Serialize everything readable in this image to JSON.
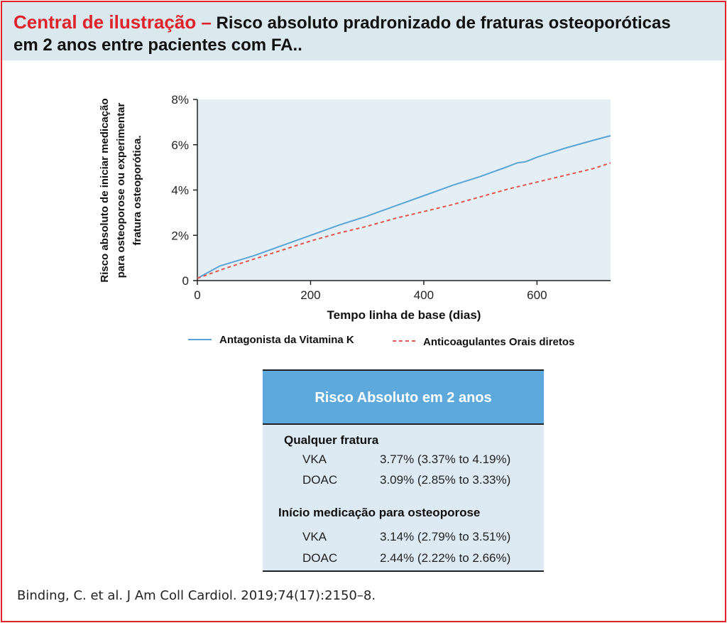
{
  "header": {
    "accent_title": "Central de ilustração –",
    "title_rest": " Risco absoluto pradronizado de fraturas osteoporóticas",
    "title_line2": "em 2 anos entre pacientes com FA.."
  },
  "colors": {
    "frame": "#e0232b",
    "header_bg": "#dbe8ee",
    "plot_bg": "#e4eef5",
    "vka": "#5aa5d6",
    "doac": "#e0574a",
    "table_head": "#5ea9dc",
    "table_bg": "#dde9f3"
  },
  "chart_data": {
    "type": "line",
    "title": "",
    "xlabel": "Tempo linha de base (dias)",
    "ylabel_lines": [
      "Risco absoluto de iniciar medicação",
      "para osteoporose ou experimentar",
      "fratura osteoporótica."
    ],
    "xlim": [
      0,
      730
    ],
    "ylim": [
      0,
      8
    ],
    "x_ticks": [
      0,
      200,
      400,
      600
    ],
    "x_tick_labels": [
      "0",
      "200",
      "400",
      "600"
    ],
    "y_ticks": [
      0,
      2,
      4,
      6,
      8
    ],
    "y_tick_labels": [
      "0",
      "2%",
      "4%",
      "6%",
      "8%"
    ],
    "grid": false,
    "legend_position": "bottom",
    "series": [
      {
        "name": "Antagonista da Vitamina K",
        "style": "solid",
        "x": [
          0,
          40,
          100,
          150,
          200,
          250,
          300,
          350,
          400,
          450,
          500,
          550,
          565,
          580,
          600,
          650,
          700,
          730
        ],
        "y": [
          0.1,
          0.65,
          1.1,
          1.55,
          2.0,
          2.45,
          2.85,
          3.3,
          3.75,
          4.2,
          4.6,
          5.05,
          5.2,
          5.25,
          5.45,
          5.85,
          6.2,
          6.4
        ]
      },
      {
        "name": "Anticoagulantes Orais diretos",
        "style": "dashed",
        "x": [
          0,
          50,
          100,
          150,
          200,
          250,
          300,
          350,
          400,
          450,
          500,
          550,
          600,
          650,
          700,
          730
        ],
        "y": [
          0.1,
          0.55,
          0.95,
          1.35,
          1.75,
          2.1,
          2.4,
          2.75,
          3.05,
          3.35,
          3.7,
          4.05,
          4.35,
          4.65,
          4.95,
          5.2
        ]
      }
    ]
  },
  "table": {
    "title": "Risco Absoluto em 2 anos",
    "sections": [
      {
        "title": "Qualquer fratura",
        "rows": [
          {
            "label": "VKA",
            "value": "3.77% (3.37% to 4.19%)"
          },
          {
            "label": "DOAC",
            "value": "3.09% (2.85% to 3.33%)"
          }
        ]
      },
      {
        "title": "Início medicação para osteoporose",
        "rows": [
          {
            "label": "VKA",
            "value": "3.14% (2.79% to 3.51%)"
          },
          {
            "label": "DOAC",
            "value": "2.44% (2.22% to 2.66%)"
          }
        ]
      }
    ]
  },
  "citation": "Binding, C. et al. J Am Coll Cardiol. 2019;74(17):2150–8."
}
